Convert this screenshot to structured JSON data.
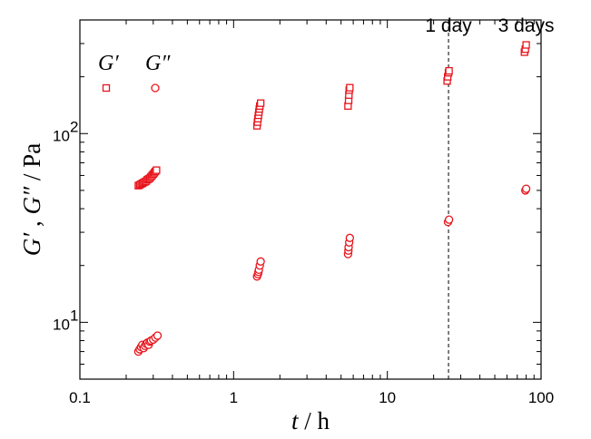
{
  "chart_data": {
    "type": "scatter",
    "xscale": "log",
    "yscale": "log",
    "xlim": [
      0.1,
      100
    ],
    "ylim": [
      5,
      400
    ],
    "xlabel": {
      "italic": "t",
      "rest": " / h"
    },
    "ylabel": {
      "italic1": "G′",
      "sep": " , ",
      "italic2": "G″",
      "rest": " / Pa"
    },
    "x_ticks": [
      {
        "value": 0.1,
        "label": "0.1"
      },
      {
        "value": 1,
        "label": "1"
      },
      {
        "value": 10,
        "label": "10"
      },
      {
        "value": 100,
        "label": "100"
      }
    ],
    "y_ticks": [
      {
        "value": 10,
        "base": "10",
        "exp": "1"
      },
      {
        "value": 100,
        "base": "10",
        "exp": "2"
      }
    ],
    "grid": false,
    "color": "#e8141c",
    "series": [
      {
        "name": "G′",
        "marker": "square",
        "points": [
          [
            0.24,
            53
          ],
          [
            0.245,
            53.5
          ],
          [
            0.25,
            54
          ],
          [
            0.255,
            54.5
          ],
          [
            0.26,
            55
          ],
          [
            0.265,
            55.5
          ],
          [
            0.27,
            56
          ],
          [
            0.275,
            57
          ],
          [
            0.28,
            57.5
          ],
          [
            0.285,
            58
          ],
          [
            0.29,
            59
          ],
          [
            0.295,
            60
          ],
          [
            0.3,
            61
          ],
          [
            0.305,
            62
          ],
          [
            0.31,
            63
          ],
          [
            0.315,
            64
          ],
          [
            1.42,
            110
          ],
          [
            1.43,
            115
          ],
          [
            1.44,
            120
          ],
          [
            1.45,
            125
          ],
          [
            1.46,
            130
          ],
          [
            1.47,
            135
          ],
          [
            1.48,
            140
          ],
          [
            1.5,
            145
          ],
          [
            5.55,
            140
          ],
          [
            5.6,
            150
          ],
          [
            5.62,
            160
          ],
          [
            5.65,
            170
          ],
          [
            5.7,
            175
          ],
          [
            24.5,
            190
          ],
          [
            24.7,
            200
          ],
          [
            25,
            210
          ],
          [
            25.2,
            215
          ],
          [
            78,
            270
          ],
          [
            79,
            280
          ],
          [
            80,
            295
          ]
        ]
      },
      {
        "name": "G″",
        "marker": "circle",
        "points": [
          [
            0.24,
            7.0
          ],
          [
            0.245,
            7.2
          ],
          [
            0.25,
            7.4
          ],
          [
            0.255,
            7.6
          ],
          [
            0.26,
            7.3
          ],
          [
            0.265,
            7.5
          ],
          [
            0.27,
            7.7
          ],
          [
            0.275,
            7.8
          ],
          [
            0.28,
            7.6
          ],
          [
            0.285,
            7.9
          ],
          [
            0.29,
            8.0
          ],
          [
            0.3,
            8.1
          ],
          [
            0.31,
            8.3
          ],
          [
            0.32,
            8.5
          ],
          [
            1.42,
            17.5
          ],
          [
            1.44,
            18.0
          ],
          [
            1.45,
            18.5
          ],
          [
            1.46,
            19.0
          ],
          [
            1.48,
            20.0
          ],
          [
            1.5,
            21.0
          ],
          [
            5.55,
            23.0
          ],
          [
            5.58,
            24.0
          ],
          [
            5.6,
            25.0
          ],
          [
            5.65,
            26.5
          ],
          [
            5.7,
            28.0
          ],
          [
            24.8,
            34
          ],
          [
            25.2,
            35
          ],
          [
            79,
            50
          ],
          [
            80,
            51
          ]
        ]
      }
    ],
    "legend": {
      "placement": "top-left",
      "entries": [
        {
          "label": "G′",
          "marker": "square"
        },
        {
          "label": "G″",
          "marker": "circle"
        }
      ]
    },
    "reference_line": {
      "x": 25,
      "style": "dashed"
    },
    "annotations": [
      {
        "x": 25,
        "text": "1 day"
      },
      {
        "x": 80,
        "text": "3 days"
      }
    ]
  }
}
